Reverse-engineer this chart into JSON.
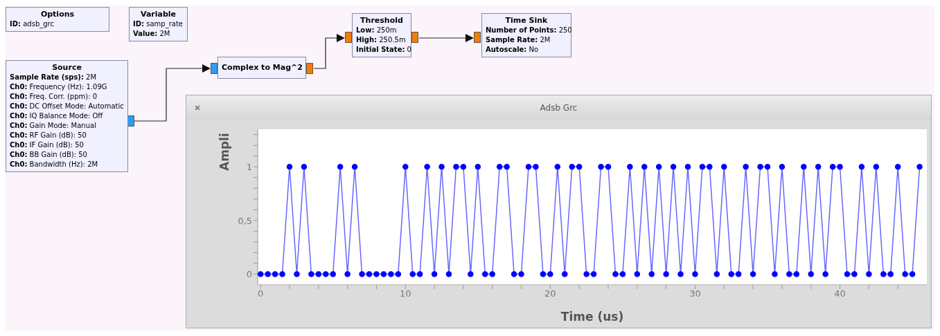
{
  "chart_data": {
    "type": "line",
    "title": "Adsb Grc",
    "xlabel": "Time (us)",
    "ylabel": "Ampli",
    "x": [
      0,
      0.5,
      1,
      1.5,
      2,
      2.5,
      3,
      3.5,
      4,
      4.5,
      5,
      5.5,
      6,
      6.5,
      7,
      7.5,
      8,
      8.5,
      9,
      9.5,
      10,
      10.5,
      11,
      11.5,
      12,
      12.5,
      13,
      13.5,
      14,
      14.5,
      15,
      15.5,
      16,
      16.5,
      17,
      17.5,
      18,
      18.5,
      19,
      19.5,
      20,
      20.5,
      21,
      21.5,
      22,
      22.5,
      23,
      23.5,
      24,
      24.5,
      25,
      25.5,
      26,
      26.5,
      27,
      27.5,
      28,
      28.5,
      29,
      29.5,
      30,
      30.5,
      31,
      31.5,
      32,
      32.5,
      33,
      33.5,
      34,
      34.5,
      35,
      35.5,
      36,
      36.5,
      37,
      37.5,
      38,
      38.5,
      39,
      39.5,
      40,
      40.5,
      41,
      41.5,
      42,
      42.5,
      43,
      43.5,
      44,
      44.5,
      45,
      45.5
    ],
    "series": [
      {
        "color": "#0000ff",
        "values": [
          0,
          0,
          0,
          0,
          1,
          0,
          1,
          0,
          0,
          0,
          0,
          1,
          0,
          1,
          0,
          0,
          0,
          0,
          0,
          0,
          1,
          0,
          0,
          1,
          0,
          1,
          0,
          1,
          1,
          0,
          1,
          0,
          0,
          1,
          1,
          0,
          0,
          1,
          1,
          0,
          0,
          1,
          0,
          1,
          1,
          0,
          0,
          1,
          1,
          0,
          0,
          1,
          0,
          1,
          0,
          1,
          0,
          1,
          0,
          1,
          0,
          1,
          1,
          0,
          1,
          0,
          0,
          1,
          0,
          1,
          1,
          0,
          1,
          0,
          0,
          1,
          0,
          1,
          0,
          1,
          1,
          0,
          0,
          1,
          0,
          1,
          0,
          0,
          1,
          0,
          0,
          1
        ]
      }
    ],
    "xlim": [
      -0.2,
      46
    ],
    "ylim": [
      -0.1,
      1.35
    ],
    "xticks": [
      0,
      {
        "value": 2,
        "label": null
      },
      {
        "value": 4,
        "label": null
      },
      {
        "value": 6,
        "label": null
      },
      {
        "value": 8,
        "label": null
      },
      10,
      {
        "value": 12,
        "label": null
      },
      {
        "value": 14,
        "label": null
      },
      {
        "value": 16,
        "label": null
      },
      {
        "value": 18,
        "label": null
      },
      20,
      {
        "value": 22,
        "label": null
      },
      {
        "value": 24,
        "label": null
      },
      {
        "value": 26,
        "label": null
      },
      {
        "value": 28,
        "label": null
      },
      30,
      {
        "value": 32,
        "label": null
      },
      {
        "value": 34,
        "label": null
      },
      {
        "value": 36,
        "label": null
      },
      {
        "value": 38,
        "label": null
      },
      40,
      {
        "value": 42,
        "label": null
      },
      {
        "value": 44,
        "label": null
      }
    ],
    "yticks": [
      0,
      {
        "value": 0.1,
        "label": null
      },
      {
        "value": 0.2,
        "label": null
      },
      {
        "value": 0.3,
        "label": null
      },
      {
        "value": 0.4,
        "label": null
      },
      {
        "value": 0.5,
        "label": "0,5"
      },
      {
        "value": 0.6,
        "label": null
      },
      {
        "value": 0.7,
        "label": null
      },
      {
        "value": 0.8,
        "label": null
      },
      {
        "value": 0.9,
        "label": null
      },
      1,
      {
        "value": 1.1,
        "label": null
      },
      {
        "value": 1.2,
        "label": null
      },
      {
        "value": 1.3,
        "label": null
      }
    ],
    "grid": false,
    "legend": false,
    "marker": "circle",
    "line_style": "solid",
    "annotations": [
      "Options\nID: adsb_grc",
      "Variable\nID: samp_rate\nValue: 2M",
      "Source\nSample Rate (sps): 2M\nCh0: Frequency (Hz): 1.09G\nCh0: Freq. Corr. (ppm): 0\nCh0: DC Offset Mode: Automatic\nCh0: IQ Balance Mode: Off\nCh0: Gain Mode: Manual\nCh0: RF Gain (dB): 50\nCh0: IF Gain (dB): 50\nCh0: BB Gain (dB): 50\nCh0: Bandwidth (Hz): 2M",
      "Complex to Mag^2",
      "Threshold\nLow: 250m\nHigh: 250.5m\nInitial State: 0",
      "Time Sink\nNumber of Points: 250\nSample Rate: 2M\nAutoscale: No"
    ]
  }
}
